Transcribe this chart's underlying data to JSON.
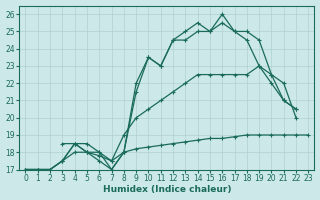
{
  "xlabel": "Humidex (Indice chaleur)",
  "xlim": [
    -0.5,
    23.5
  ],
  "ylim": [
    17,
    26.5
  ],
  "yticks": [
    17,
    18,
    19,
    20,
    21,
    22,
    23,
    24,
    25,
    26
  ],
  "xticks": [
    0,
    1,
    2,
    3,
    4,
    5,
    6,
    7,
    8,
    9,
    10,
    11,
    12,
    13,
    14,
    15,
    16,
    17,
    18,
    19,
    20,
    21,
    22,
    23
  ],
  "bg_color": "#cce8e8",
  "grid_color": "#b0d0d0",
  "line_color": "#1a6b5a",
  "lines": [
    {
      "x": [
        0,
        1,
        2,
        3,
        4,
        5,
        6,
        7,
        8,
        9,
        10,
        11,
        12,
        13,
        14,
        15,
        16,
        17,
        18,
        19,
        20,
        21,
        22,
        23
      ],
      "y": [
        17,
        17,
        17,
        17.5,
        18,
        18,
        17.8,
        17.5,
        18,
        18.2,
        18.3,
        18.4,
        18.5,
        18.6,
        18.7,
        18.8,
        18.8,
        18.9,
        19,
        19,
        19,
        19,
        19,
        19
      ]
    },
    {
      "x": [
        0,
        1,
        2,
        3,
        4,
        5,
        6,
        7,
        8,
        9,
        10,
        11,
        12,
        13,
        14,
        15,
        16,
        17,
        18,
        19,
        20,
        21,
        22
      ],
      "y": [
        17,
        17,
        17,
        17.5,
        18.5,
        18.5,
        18,
        17.5,
        19,
        20,
        20.5,
        21,
        21.5,
        22,
        22.5,
        22.5,
        22.5,
        22.5,
        22.5,
        23,
        22,
        21,
        20.5
      ]
    },
    {
      "x": [
        0,
        1,
        2,
        3,
        4,
        5,
        6,
        7,
        8,
        9,
        10,
        11,
        12,
        13,
        14,
        15,
        16,
        17,
        18,
        19,
        20,
        21,
        22
      ],
      "y": [
        17,
        17,
        17,
        17.5,
        18.5,
        18,
        18,
        17,
        18,
        22,
        23.5,
        23,
        24.5,
        25,
        25.5,
        25,
        26,
        25,
        25,
        24.5,
        22.5,
        21,
        20.5
      ]
    },
    {
      "x": [
        3,
        4,
        5,
        6,
        7,
        8,
        9,
        10,
        11,
        12,
        13,
        14,
        15,
        16,
        17,
        18,
        19,
        20,
        21,
        22
      ],
      "y": [
        18.5,
        18.5,
        18,
        17.5,
        17,
        18,
        21.5,
        23.5,
        23,
        24.5,
        24.5,
        25,
        25,
        25.5,
        25,
        24.5,
        23,
        22.5,
        22,
        20
      ]
    }
  ]
}
